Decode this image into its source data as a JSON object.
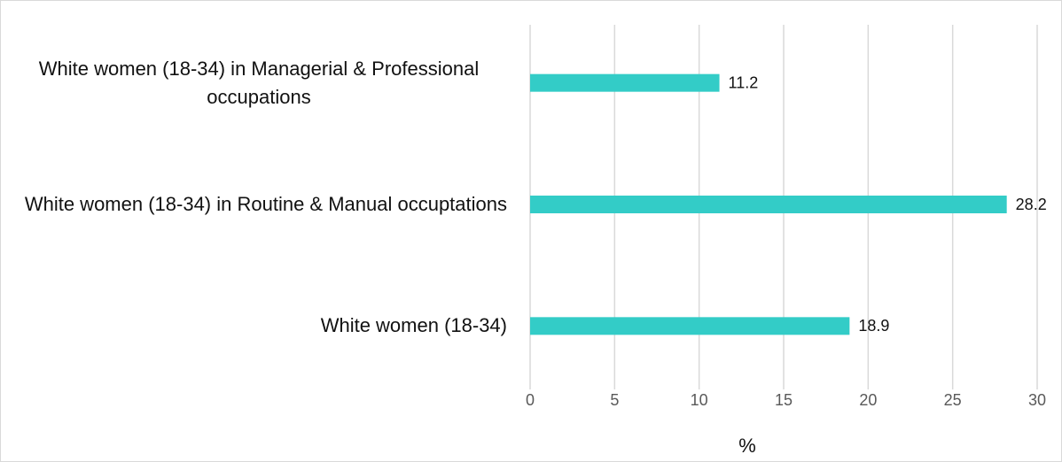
{
  "chart_data": {
    "type": "bar",
    "orientation": "horizontal",
    "categories": [
      "White women (18-34) in Managerial & Professional occupations",
      "White women (18-34) in Routine & Manual occuptations",
      "White women (18-34)"
    ],
    "values": [
      11.2,
      28.2,
      18.9
    ],
    "color": "#33ccc7",
    "xlabel": "%",
    "xlim": [
      0,
      30
    ],
    "xticks": [
      0,
      5,
      10,
      15,
      20,
      25,
      30
    ],
    "grid": true
  }
}
